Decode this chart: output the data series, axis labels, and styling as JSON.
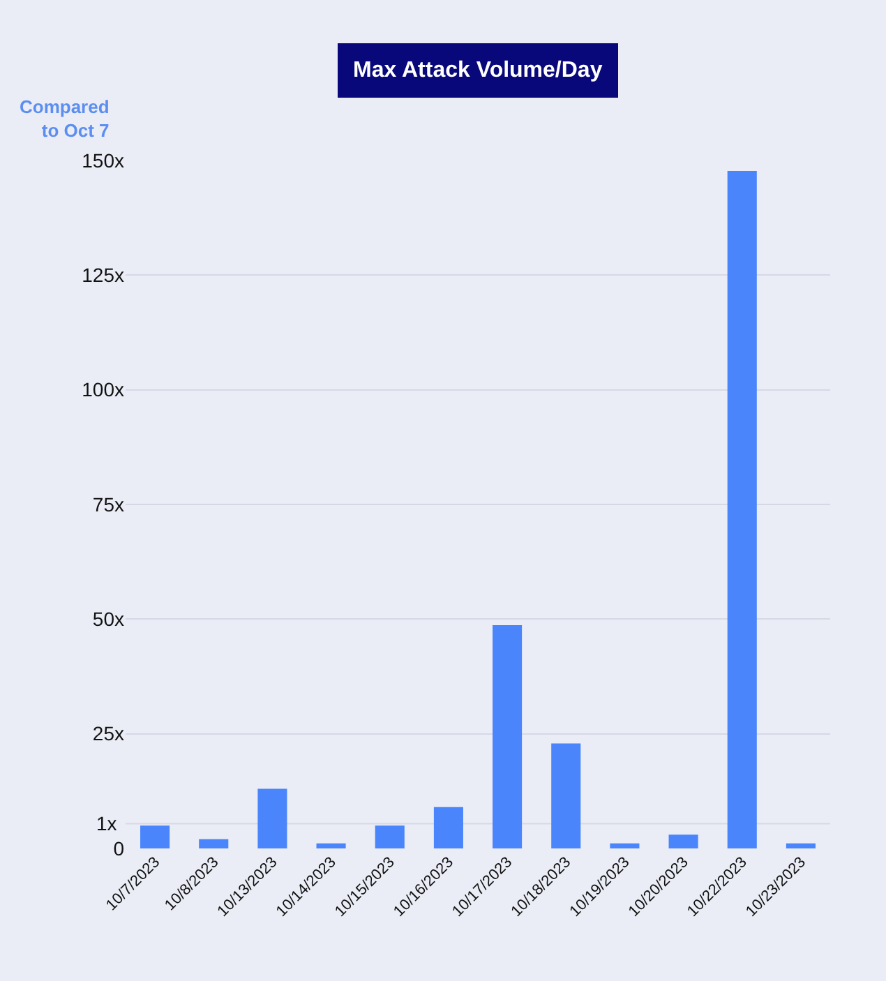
{
  "chart_data": {
    "type": "bar",
    "title": "Max Attack Volume/Day",
    "ylabel": "Compared\nto Oct 7",
    "categories": [
      "10/7/2023",
      "10/8/2023",
      "10/13/2023",
      "10/14/2023",
      "10/15/2023",
      "10/16/2023",
      "10/17/2023",
      "10/18/2023",
      "10/19/2023",
      "10/20/2023",
      "10/22/2023",
      "10/23/2023"
    ],
    "values": [
      5.0,
      2.0,
      13.0,
      1.1,
      5.0,
      9.0,
      48.7,
      22.9,
      1.1,
      3.0,
      147.7,
      1.1
    ],
    "color": "#4a85fb",
    "ylim": [
      0,
      150
    ],
    "yticks": [
      0,
      {
        "value": 25,
        "label": "25x"
      },
      {
        "value": 50,
        "label": "50x"
      },
      {
        "value": 75,
        "label": "75x"
      },
      {
        "value": 100,
        "label": "100x"
      },
      {
        "value": 125,
        "label": "125x"
      },
      {
        "value": 150,
        "label": "150x"
      }
    ],
    "ref_lines": [
      {
        "axis": "y",
        "value": 5.4,
        "label": "1x",
        "color": "#d5d9e6"
      }
    ],
    "grid": "y"
  }
}
